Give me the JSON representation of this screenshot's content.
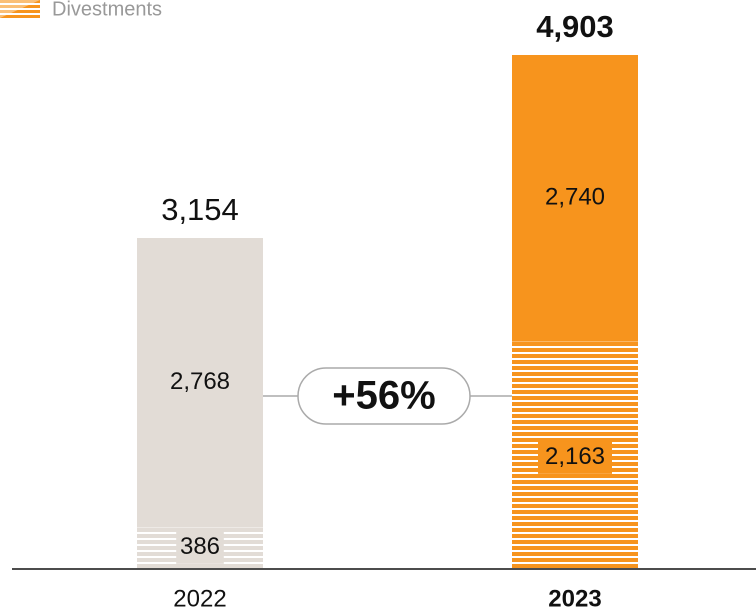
{
  "chart_data": {
    "type": "stacked-bar",
    "categories": [
      "2022",
      "2023"
    ],
    "highlight": "2023",
    "category_colors": [
      "#e2dcd6",
      "#f7941d"
    ],
    "series": [
      {
        "name": "Divestments",
        "hatched": true,
        "values": [
          386,
          2163
        ],
        "value_labels": [
          "386",
          "2,163"
        ]
      },
      {
        "hatched": false,
        "values": [
          2768,
          2740
        ],
        "value_labels": [
          "2,768",
          "2,740"
        ]
      }
    ],
    "totals": [
      3154,
      4903
    ],
    "total_labels": [
      "3,154",
      "4,903"
    ],
    "annotation": "+56%",
    "legend_color": "#f7941d"
  }
}
